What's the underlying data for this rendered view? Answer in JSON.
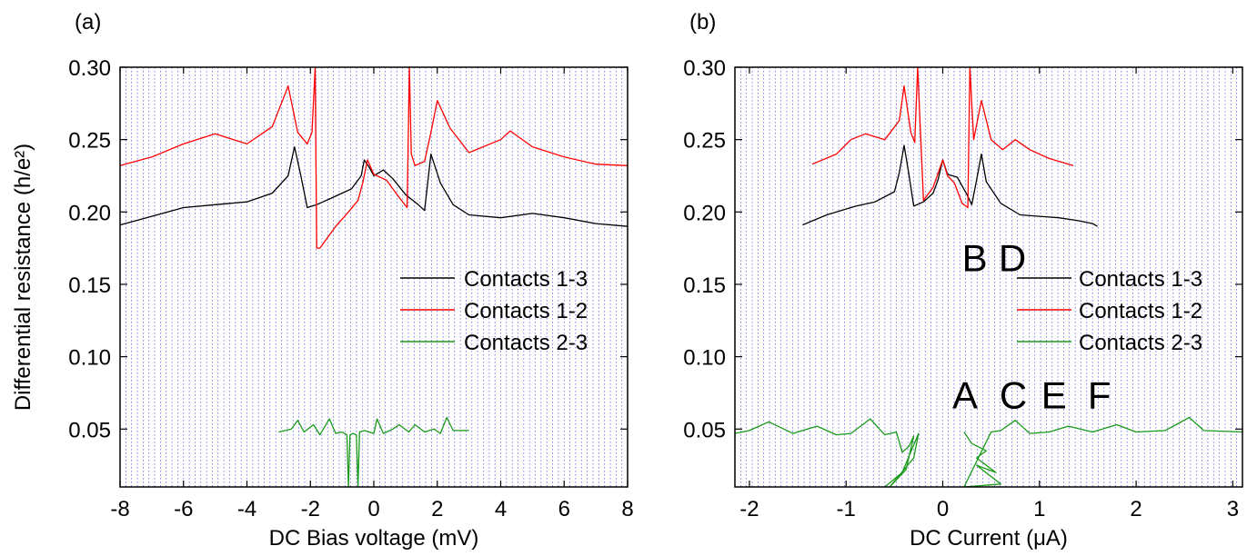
{
  "figure": {
    "ylabel": "Differential resistance (h/e²)",
    "colors": {
      "black": "#000000",
      "red": "#ff0000",
      "green": "#1a9a1a",
      "grid": "#4a4ae0"
    }
  },
  "chart_data": [
    {
      "panel_label": "(a)",
      "type": "line",
      "xlabel": "DC Bias voltage (mV)",
      "ylabel": "Differential resistance (h/e²)",
      "xlim": [
        -8,
        8
      ],
      "ylim": [
        0.01,
        0.3
      ],
      "xticks": [
        -8,
        -6,
        -4,
        -2,
        0,
        2,
        4,
        6,
        8
      ],
      "xtick_labels": [
        "-8",
        "-6",
        "-4",
        "-2",
        "0",
        "2",
        "4",
        "6",
        "8"
      ],
      "yticks": [
        0.05,
        0.1,
        0.15,
        0.2,
        0.25,
        0.3
      ],
      "ytick_labels": [
        "0.05",
        "0.10",
        "0.15",
        "0.20",
        "0.25",
        "0.30"
      ],
      "grid": "vertical dotted",
      "legend_position": "right-middle",
      "series": [
        {
          "name": "Contacts 1-3",
          "color": "#000000",
          "x": [
            -8,
            -7,
            -6,
            -5,
            -4,
            -3.2,
            -2.7,
            -2.5,
            -2.3,
            -2.1,
            -1.8,
            -1.4,
            -1.0,
            -0.7,
            -0.4,
            -0.3,
            -0.15,
            0.0,
            0.3,
            0.6,
            1.0,
            1.4,
            1.6,
            1.8,
            2.1,
            2.5,
            3,
            4,
            5,
            6,
            7,
            8
          ],
          "y": [
            0.191,
            0.197,
            0.203,
            0.205,
            0.207,
            0.213,
            0.225,
            0.245,
            0.225,
            0.203,
            0.205,
            0.209,
            0.213,
            0.216,
            0.225,
            0.236,
            0.231,
            0.225,
            0.229,
            0.223,
            0.212,
            0.205,
            0.201,
            0.24,
            0.22,
            0.205,
            0.198,
            0.196,
            0.199,
            0.196,
            0.192,
            0.19
          ]
        },
        {
          "name": "Contacts 1-2",
          "color": "#ff0000",
          "x": [
            -8,
            -7,
            -6,
            -5,
            -4,
            -3.2,
            -2.7,
            -2.4,
            -2.1,
            -1.95,
            -1.85,
            -1.8,
            -1.7,
            -1.2,
            -0.8,
            -0.5,
            -0.35,
            -0.2,
            0.0,
            0.4,
            0.8,
            1.05,
            1.12,
            1.18,
            1.3,
            1.6,
            1.8,
            2.0,
            2.4,
            3,
            4,
            4.3,
            5,
            6,
            7,
            8
          ],
          "y": [
            0.232,
            0.238,
            0.247,
            0.254,
            0.247,
            0.259,
            0.287,
            0.255,
            0.247,
            0.255,
            0.3,
            0.175,
            0.175,
            0.19,
            0.2,
            0.208,
            0.22,
            0.236,
            0.226,
            0.222,
            0.21,
            0.203,
            0.3,
            0.24,
            0.232,
            0.235,
            0.255,
            0.277,
            0.258,
            0.241,
            0.25,
            0.256,
            0.245,
            0.238,
            0.233,
            0.232
          ]
        },
        {
          "name": "Contacts 2-3",
          "color": "#1a9a1a",
          "x": [
            -3.0,
            -2.6,
            -2.4,
            -2.2,
            -1.9,
            -1.7,
            -1.4,
            -1.2,
            -1.0,
            -0.85,
            -0.8,
            -0.75,
            -0.65,
            -0.55,
            -0.5,
            -0.45,
            -0.3,
            0.0,
            0.1,
            0.3,
            0.6,
            0.8,
            1.1,
            1.3,
            1.6,
            1.9,
            2.1,
            2.3,
            2.5,
            3.0
          ],
          "y": [
            0.048,
            0.05,
            0.056,
            0.048,
            0.053,
            0.046,
            0.057,
            0.047,
            0.048,
            0.046,
            0.01,
            0.046,
            0.047,
            0.046,
            0.01,
            0.048,
            0.049,
            0.047,
            0.057,
            0.047,
            0.05,
            0.053,
            0.048,
            0.053,
            0.048,
            0.05,
            0.047,
            0.058,
            0.049,
            0.049
          ]
        }
      ]
    },
    {
      "panel_label": "(b)",
      "type": "line",
      "xlabel": "DC Current (μA)",
      "ylabel": "Differential resistance (h/e²)",
      "xlim": [
        -2.15,
        3.1
      ],
      "ylim": [
        0.01,
        0.3
      ],
      "xticks": [
        -2,
        -1,
        0,
        1,
        2,
        3
      ],
      "xtick_labels": [
        "-2",
        "-1",
        "0",
        "1",
        "2",
        "3"
      ],
      "yticks": [
        0.05,
        0.1,
        0.15,
        0.2,
        0.25,
        0.3
      ],
      "ytick_labels": [
        "0.05",
        "0.10",
        "0.15",
        "0.20",
        "0.25",
        "0.30"
      ],
      "grid": "vertical dotted",
      "legend_position": "right-middle",
      "annotations": [
        {
          "text": "B",
          "x": 0.33,
          "y": 0.168
        },
        {
          "text": "D",
          "x": 0.72,
          "y": 0.168
        },
        {
          "text": "A",
          "x": 0.23,
          "y": 0.073
        },
        {
          "text": "C",
          "x": 0.73,
          "y": 0.073
        },
        {
          "text": "E",
          "x": 1.15,
          "y": 0.073
        },
        {
          "text": "F",
          "x": 1.62,
          "y": 0.073
        }
      ],
      "series": [
        {
          "name": "Contacts 1-3",
          "color": "#000000",
          "x": [
            -1.45,
            -1.2,
            -0.9,
            -0.7,
            -0.5,
            -0.45,
            -0.4,
            -0.35,
            -0.3,
            -0.2,
            -0.1,
            -0.05,
            0.0,
            0.05,
            0.15,
            0.25,
            0.3,
            0.35,
            0.4,
            0.45,
            0.6,
            0.8,
            1.0,
            1.2,
            1.4,
            1.55,
            1.6
          ],
          "y": [
            0.191,
            0.198,
            0.204,
            0.207,
            0.214,
            0.227,
            0.246,
            0.226,
            0.204,
            0.207,
            0.213,
            0.222,
            0.236,
            0.226,
            0.224,
            0.212,
            0.205,
            0.222,
            0.24,
            0.221,
            0.206,
            0.198,
            0.197,
            0.196,
            0.194,
            0.192,
            0.19
          ]
        },
        {
          "name": "Contacts 1-2",
          "color": "#ff0000",
          "x": [
            -1.35,
            -1.1,
            -0.95,
            -0.8,
            -0.6,
            -0.45,
            -0.4,
            -0.33,
            -0.29,
            -0.26,
            -0.2,
            -0.1,
            0.0,
            0.05,
            0.12,
            0.2,
            0.26,
            0.28,
            0.32,
            0.4,
            0.5,
            0.62,
            0.75,
            0.9,
            1.1,
            1.3,
            1.35
          ],
          "y": [
            0.233,
            0.24,
            0.25,
            0.254,
            0.25,
            0.263,
            0.287,
            0.255,
            0.248,
            0.3,
            0.208,
            0.217,
            0.236,
            0.225,
            0.22,
            0.206,
            0.203,
            0.3,
            0.25,
            0.277,
            0.25,
            0.243,
            0.25,
            0.243,
            0.237,
            0.233,
            0.232
          ]
        },
        {
          "name": "Contacts 2-3",
          "color": "#1a9a1a",
          "x": [
            -2.15,
            -2.0,
            -1.8,
            -1.55,
            -1.3,
            -1.1,
            -0.95,
            -0.75,
            -0.6,
            -0.48,
            -0.42,
            -0.35,
            -0.3,
            -0.38,
            -0.55,
            -0.3,
            -0.25,
            -0.42,
            -0.6,
            null,
            0.22,
            0.3,
            0.45,
            0.35,
            0.55,
            0.35,
            0.6,
            0.22,
            0.5,
            0.6,
            0.75,
            0.9,
            1.1,
            1.3,
            1.55,
            1.8,
            2.0,
            2.3,
            2.55,
            2.7,
            3.1
          ],
          "y": [
            0.047,
            0.049,
            0.055,
            0.047,
            0.052,
            0.046,
            0.047,
            0.057,
            0.046,
            0.048,
            0.034,
            0.038,
            0.045,
            0.022,
            0.01,
            0.03,
            0.047,
            0.02,
            0.008,
            null,
            0.048,
            0.04,
            0.035,
            0.03,
            0.02,
            0.025,
            0.012,
            0.005,
            0.048,
            0.049,
            0.056,
            0.047,
            0.048,
            0.052,
            0.048,
            0.053,
            0.048,
            0.049,
            0.058,
            0.049,
            0.048
          ]
        }
      ]
    }
  ]
}
